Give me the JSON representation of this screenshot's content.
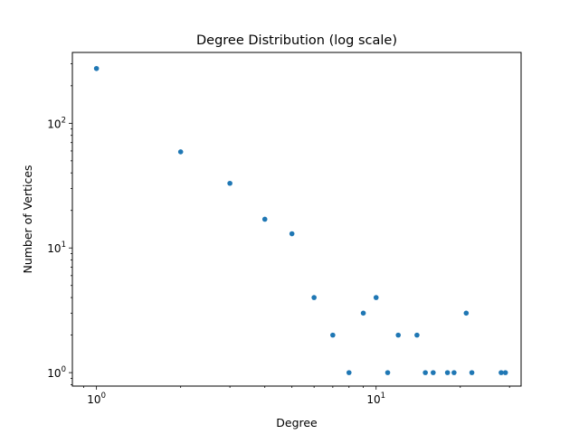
{
  "chart_data": {
    "type": "scatter",
    "title": "Degree Distribution (log scale)",
    "xlabel": "Degree",
    "ylabel": "Number of Vertices",
    "xscale": "log",
    "yscale": "log",
    "xlim": [
      0.82,
      33
    ],
    "ylim": [
      0.78,
      370
    ],
    "grid": false,
    "marker_color": "#1f77b4",
    "x_ticks": [
      {
        "value": 1,
        "base": "10",
        "exp": "0"
      },
      {
        "value": 10,
        "base": "10",
        "exp": "1"
      }
    ],
    "y_ticks": [
      {
        "value": 1,
        "base": "10",
        "exp": "0"
      },
      {
        "value": 10,
        "base": "10",
        "exp": "1"
      },
      {
        "value": 100,
        "base": "10",
        "exp": "2"
      }
    ],
    "points": [
      {
        "x": 1,
        "y": 275
      },
      {
        "x": 2,
        "y": 59
      },
      {
        "x": 3,
        "y": 33
      },
      {
        "x": 4,
        "y": 17
      },
      {
        "x": 5,
        "y": 13
      },
      {
        "x": 6,
        "y": 4
      },
      {
        "x": 7,
        "y": 2
      },
      {
        "x": 8,
        "y": 1
      },
      {
        "x": 9,
        "y": 3
      },
      {
        "x": 10,
        "y": 4
      },
      {
        "x": 11,
        "y": 1
      },
      {
        "x": 12,
        "y": 2
      },
      {
        "x": 14,
        "y": 2
      },
      {
        "x": 15,
        "y": 1
      },
      {
        "x": 16,
        "y": 1
      },
      {
        "x": 18,
        "y": 1
      },
      {
        "x": 19,
        "y": 1
      },
      {
        "x": 21,
        "y": 3
      },
      {
        "x": 22,
        "y": 1
      },
      {
        "x": 28,
        "y": 1
      },
      {
        "x": 29,
        "y": 1
      }
    ]
  }
}
